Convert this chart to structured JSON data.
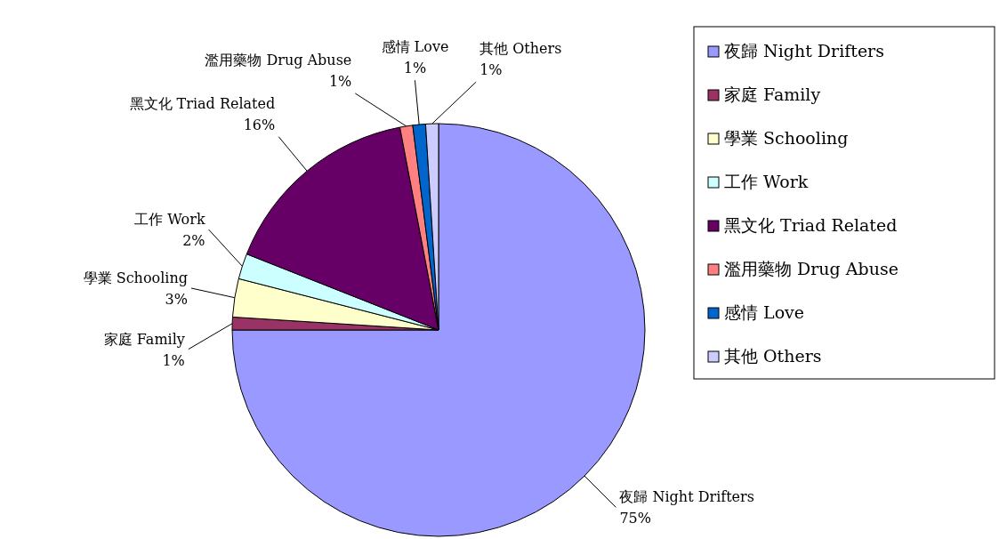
{
  "chart_data": {
    "type": "pie",
    "categories": [
      "夜歸 Night Drifters",
      "家庭 Family",
      "學業 Schooling",
      "工作 Work",
      "黑文化 Triad Related",
      "濫用藥物 Drug Abuse",
      "感情 Love",
      "其他 Others"
    ],
    "values": [
      75,
      1,
      3,
      2,
      16,
      1,
      1,
      1
    ],
    "colors": [
      "#9999ff",
      "#993366",
      "#ffffcc",
      "#ccffff",
      "#660066",
      "#ff8080",
      "#0066cc",
      "#ccccff"
    ],
    "value_labels": [
      "75%",
      "1%",
      "3%",
      "2%",
      "16%",
      "1%",
      "1%",
      "1%"
    ],
    "legend": "right"
  }
}
